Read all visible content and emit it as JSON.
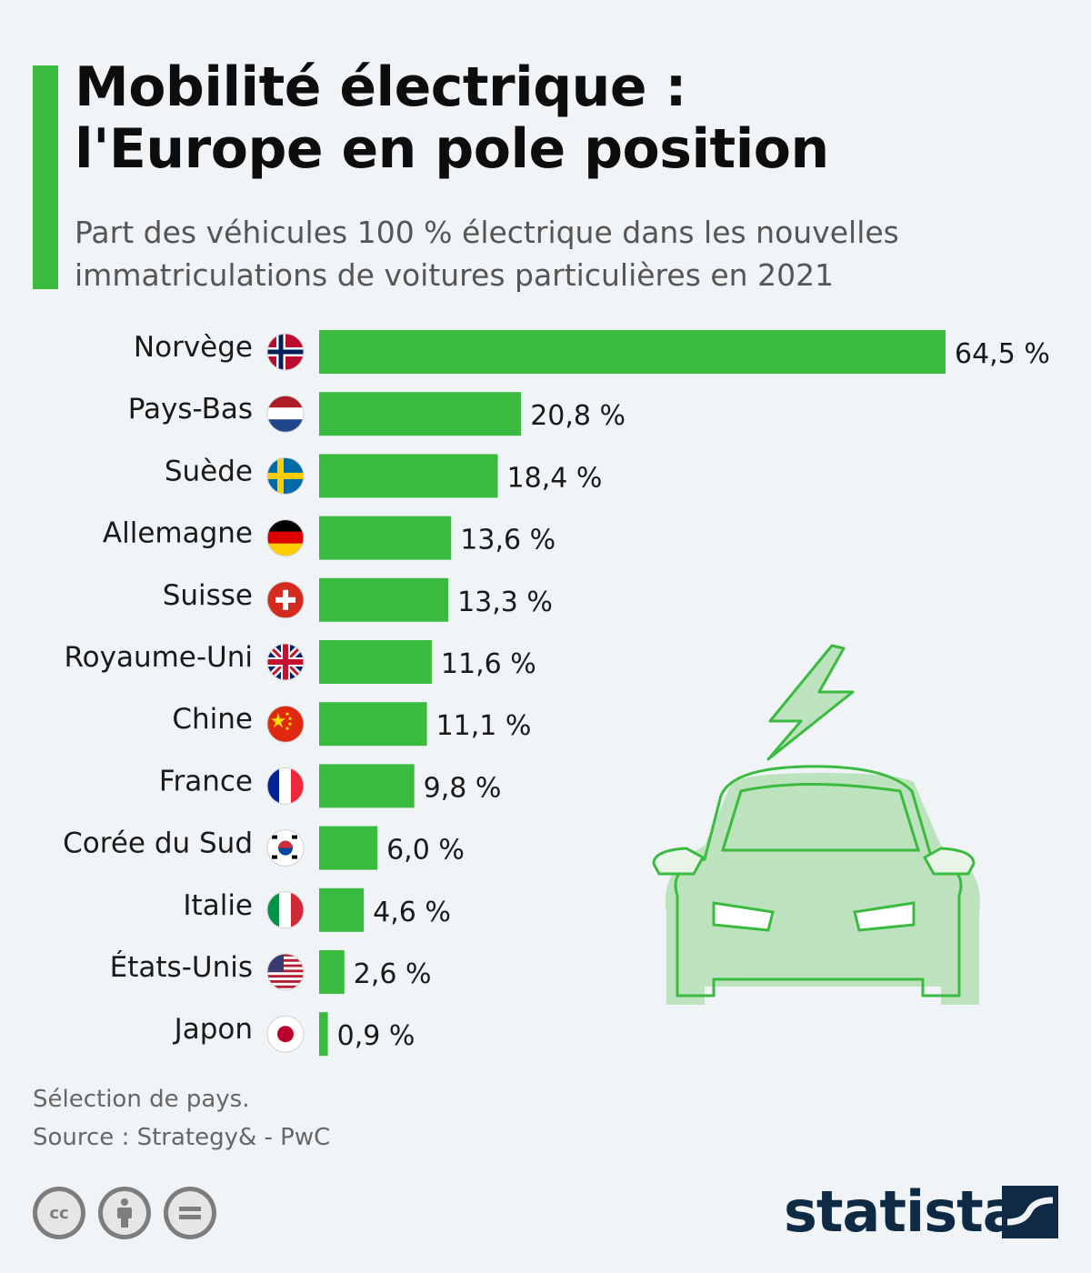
{
  "title": {
    "line1": "Mobilité électrique :",
    "line2": "l'Europe en pole position"
  },
  "subtitle": {
    "line1": "Part des véhicules 100 % électrique dans les nouvelles",
    "line2": "immatriculations de voitures particulières en 2021"
  },
  "colors": {
    "accent": "#3abb3f",
    "bar": "#3abb3f",
    "car_fill": "#bde3be",
    "car_stroke": "#3abb3f",
    "brand": "#0f2a44"
  },
  "chart_data": {
    "type": "bar",
    "orientation": "horizontal",
    "title": "Mobilité électrique : l'Europe en pole position",
    "subtitle": "Part des véhicules 100 % électrique dans les nouvelles immatriculations de voitures particulières en 2021",
    "categories": [
      "Norvège",
      "Pays-Bas",
      "Suède",
      "Allemagne",
      "Suisse",
      "Royaume-Uni",
      "Chine",
      "France",
      "Corée du Sud",
      "Italie",
      "États-Unis",
      "Japon"
    ],
    "flags": [
      "norway-flag-icon",
      "netherlands-flag-icon",
      "sweden-flag-icon",
      "germany-flag-icon",
      "switzerland-flag-icon",
      "uk-flag-icon",
      "china-flag-icon",
      "france-flag-icon",
      "south-korea-flag-icon",
      "italy-flag-icon",
      "usa-flag-icon",
      "japan-flag-icon"
    ],
    "values": [
      64.5,
      20.8,
      18.4,
      13.6,
      13.3,
      11.6,
      11.1,
      9.8,
      6.0,
      4.6,
      2.6,
      0.9
    ],
    "value_labels": [
      "64,5 %",
      "20,8 %",
      "18,4 %",
      "13,6 %",
      "13,3 %",
      "11,6 %",
      "11,1 %",
      "9,8 %",
      "6,0 %",
      "4,6 %",
      "2,6 %",
      "0,9 %"
    ],
    "unit": "%",
    "xlim": [
      0,
      64.5
    ],
    "grid": false,
    "legend": "none"
  },
  "notes": {
    "selection": "Sélection de pays.",
    "source": "Source : Strategy& - PwC"
  },
  "footer": {
    "license_icons": [
      "cc-icon",
      "attribution-icon",
      "no-derivatives-icon"
    ],
    "license_cc_text": "cc",
    "brand": "statista"
  }
}
